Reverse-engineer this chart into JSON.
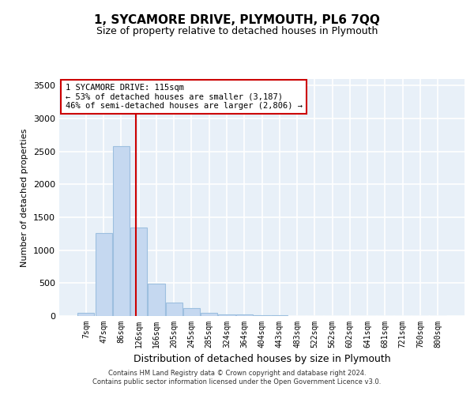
{
  "title": "1, SYCAMORE DRIVE, PLYMOUTH, PL6 7QQ",
  "subtitle": "Size of property relative to detached houses in Plymouth",
  "xlabel": "Distribution of detached houses by size in Plymouth",
  "ylabel": "Number of detached properties",
  "bar_color": "#c5d8f0",
  "bar_edge_color": "#9dbfdf",
  "background_color": "#e8f0f8",
  "grid_color": "#ffffff",
  "categories": [
    "7sqm",
    "47sqm",
    "86sqm",
    "126sqm",
    "166sqm",
    "205sqm",
    "245sqm",
    "285sqm",
    "324sqm",
    "364sqm",
    "404sqm",
    "443sqm",
    "483sqm",
    "522sqm",
    "562sqm",
    "602sqm",
    "641sqm",
    "681sqm",
    "721sqm",
    "760sqm",
    "800sqm"
  ],
  "values": [
    50,
    1260,
    2580,
    1340,
    490,
    205,
    115,
    50,
    30,
    20,
    15,
    10,
    5,
    0,
    0,
    0,
    0,
    0,
    0,
    0,
    0
  ],
  "vline_x": 2.85,
  "annotation_text": "1 SYCAMORE DRIVE: 115sqm\n← 53% of detached houses are smaller (3,187)\n46% of semi-detached houses are larger (2,806) →",
  "annotation_box_color": "#ffffff",
  "annotation_box_edge_color": "#cc0000",
  "vline_color": "#cc0000",
  "ylim": [
    0,
    3600
  ],
  "yticks": [
    0,
    500,
    1000,
    1500,
    2000,
    2500,
    3000,
    3500
  ],
  "title_fontsize": 11,
  "subtitle_fontsize": 9,
  "ylabel_fontsize": 8,
  "xlabel_fontsize": 9,
  "tick_fontsize": 7,
  "footer_line1": "Contains HM Land Registry data © Crown copyright and database right 2024.",
  "footer_line2": "Contains public sector information licensed under the Open Government Licence v3.0."
}
